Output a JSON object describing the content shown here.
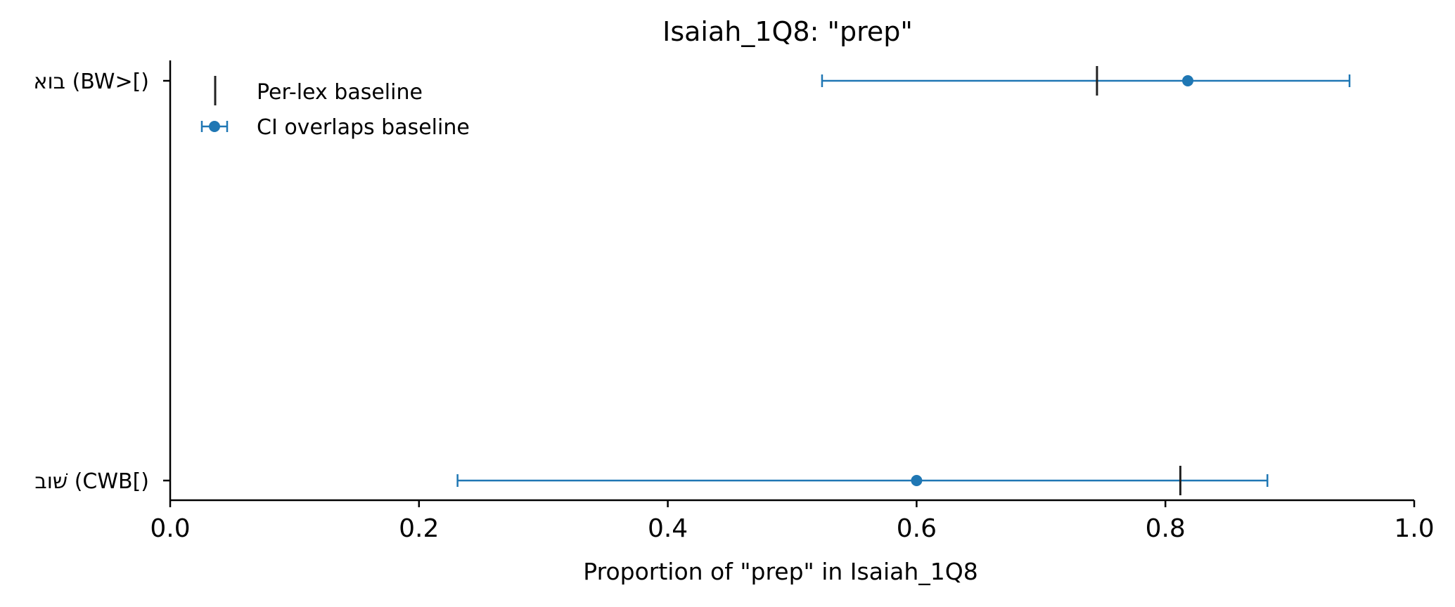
{
  "chart_data": {
    "type": "errorbar",
    "title": "Isaiah_1Q8: \"prep\"",
    "xlabel": "Proportion of \"prep\" in Isaiah_1Q8",
    "ylabel": "",
    "xlim": [
      0.0,
      1.0
    ],
    "xticks": [
      "0.0",
      "0.2",
      "0.4",
      "0.6",
      "0.8",
      "1.0"
    ],
    "grid": false,
    "legend_position": "top-left",
    "categories": [
      "בוא (BW>[)",
      "שׁוב (CWB[)"
    ],
    "series": [
      {
        "name": "CI overlaps baseline",
        "color": "#1f77b4",
        "points": [
          {
            "category": "בוא (BW>[)",
            "value": 0.818,
            "ci_low": 0.524,
            "ci_high": 0.948
          },
          {
            "category": "שׁוב (CWB[)",
            "value": 0.6,
            "ci_low": 0.231,
            "ci_high": 0.882
          }
        ]
      }
    ],
    "baseline": {
      "name": "Per-lex baseline",
      "color": "#222222",
      "values": [
        {
          "category": "בוא (BW>[)",
          "value": 0.745
        },
        {
          "category": "שׁוב (CWB[)",
          "value": 0.812
        }
      ]
    }
  }
}
